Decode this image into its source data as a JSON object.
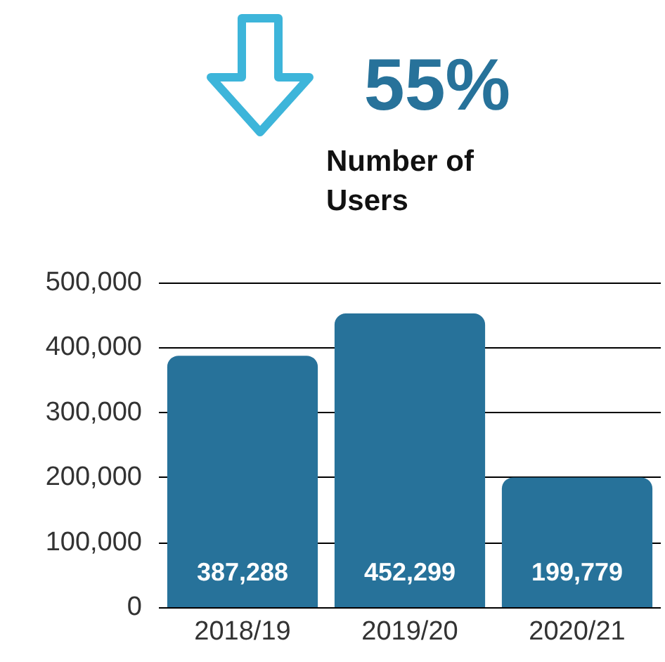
{
  "chart_data": {
    "type": "bar",
    "title": "Number of Users",
    "subtitle": "55%",
    "categories": [
      "2018/19",
      "2019/20",
      "2020/21"
    ],
    "values": [
      387288,
      452299,
      199779
    ],
    "value_labels": [
      "387,288",
      "452,299",
      "199,779"
    ],
    "color": "#27729a",
    "ylim": [
      0,
      500000
    ],
    "yticks": [
      0,
      {
        "value": 100000,
        "label": "100,000"
      },
      {
        "value": 200000,
        "label": "200,000"
      },
      {
        "value": 300000,
        "label": "300,000"
      },
      {
        "value": 400000,
        "label": "400,000"
      },
      {
        "value": 500000,
        "label": "500,000"
      }
    ],
    "grid": "y"
  }
}
